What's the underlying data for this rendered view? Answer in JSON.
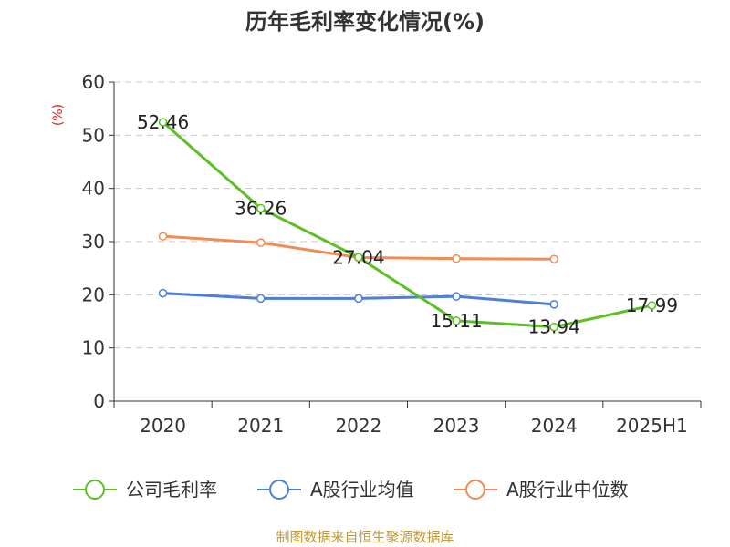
{
  "chart_data": {
    "type": "line",
    "title": "历年毛利率变化情况(%)",
    "ylabel": "(%)",
    "xlabel": "",
    "categories": [
      "2020",
      "2021",
      "2022",
      "2023",
      "2024",
      "2025H1"
    ],
    "ylim": [
      0,
      60
    ],
    "yticks": [
      "0",
      "10",
      "20",
      "30",
      "40",
      "50",
      "60"
    ],
    "grid": true,
    "legend_position": "bottom",
    "series": [
      {
        "name": "公司毛利率",
        "color": "#5cc024",
        "values": [
          52.46,
          36.26,
          27.04,
          15.11,
          13.94,
          17.99
        ],
        "labels": [
          "52.46",
          "36.26",
          "27.04",
          "15.11",
          "13.94",
          "17.99"
        ]
      },
      {
        "name": "A股行业均值",
        "color": "#4d7fd8",
        "values": [
          20.3,
          19.3,
          19.3,
          19.7,
          18.2,
          null
        ]
      },
      {
        "name": "A股行业中位数",
        "color": "#f28c55",
        "values": [
          31.0,
          29.8,
          27.0,
          26.8,
          26.7,
          null
        ]
      }
    ]
  },
  "source": "制图数据来自恒生聚源数据库"
}
